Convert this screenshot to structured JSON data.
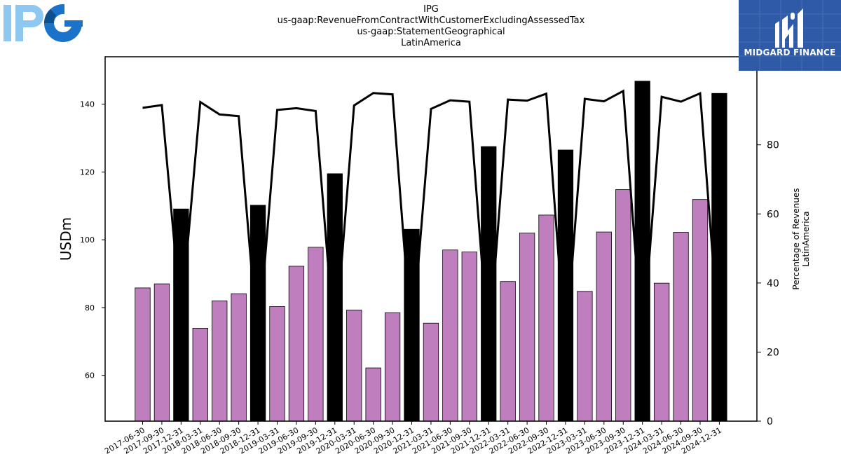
{
  "header": {
    "title_lines": [
      "IPG",
      "us-gaap:RevenueFromContractWithCustomerExcludingAssessedTax",
      "us-gaap:StatementGeographical",
      "LatinAmerica"
    ]
  },
  "logo_left": {
    "text": "IPG",
    "colors": [
      "#8ec8f0",
      "#1a73c9",
      "#0d4f8f"
    ]
  },
  "brand": {
    "text": "MIDGARD FINANCE",
    "bg_color": "#2e5aa8"
  },
  "chart_data": {
    "type": "bar",
    "categories": [
      "2017-06-30",
      "2017-09-30",
      "2017-12-31",
      "2018-03-31",
      "2018-06-30",
      "2018-09-30",
      "2018-12-31",
      "2019-03-31",
      "2019-06-30",
      "2019-09-30",
      "2019-12-31",
      "2020-03-31",
      "2020-06-30",
      "2020-09-30",
      "2020-12-31",
      "2021-03-31",
      "2021-06-30",
      "2021-09-30",
      "2021-12-31",
      "2022-03-31",
      "2022-06-30",
      "2022-09-30",
      "2022-12-31",
      "2023-03-31",
      "2023-06-30",
      "2023-09-30",
      "2023-12-31",
      "2024-03-31",
      "2024-06-30",
      "2024-09-30",
      "2024-12-31"
    ],
    "series": [
      {
        "values": [
          85.8,
          87.0,
          109.1,
          73.9,
          82.0,
          84.1,
          110.2,
          80.3,
          92.2,
          97.8,
          119.5,
          79.3,
          62.2,
          78.5,
          103.1,
          75.4,
          97.0,
          96.4,
          127.5,
          87.7,
          102.0,
          107.3,
          126.5,
          84.8,
          102.3,
          114.8,
          146.8,
          87.2,
          102.2,
          111.9,
          143.2
        ],
        "colors": [
          "#bf7fbf",
          "#bf7fbf",
          "#000000",
          "#bf7fbf",
          "#bf7fbf",
          "#bf7fbf",
          "#000000",
          "#bf7fbf",
          "#bf7fbf",
          "#bf7fbf",
          "#000000",
          "#bf7fbf",
          "#bf7fbf",
          "#bf7fbf",
          "#000000",
          "#bf7fbf",
          "#bf7fbf",
          "#bf7fbf",
          "#000000",
          "#bf7fbf",
          "#bf7fbf",
          "#bf7fbf",
          "#000000",
          "#bf7fbf",
          "#bf7fbf",
          "#bf7fbf",
          "#000000",
          "#bf7fbf",
          "#bf7fbf",
          "#bf7fbf",
          "#000000"
        ]
      },
      {
        "type": "line",
        "axis": "right",
        "color": "#000000",
        "values": [
          90.7,
          91.5,
          29.8,
          92.4,
          88.8,
          88.3,
          21.7,
          90.1,
          90.6,
          89.8,
          21.1,
          91.4,
          95.0,
          94.6,
          22.2,
          90.4,
          92.9,
          92.5,
          20.8,
          93.1,
          92.8,
          94.8,
          20.6,
          93.3,
          92.6,
          95.6,
          21.5,
          93.9,
          92.5,
          94.9,
          22.5
        ]
      }
    ],
    "ylabel": "USDm",
    "ylim": [
      46.5,
      154
    ],
    "yticks": [
      60,
      80,
      100,
      120,
      140
    ],
    "y2label": [
      "Percentage of Revenues",
      "LatinAmerica"
    ],
    "y2lim": [
      0,
      105.5
    ],
    "y2ticks": [
      0,
      20,
      40,
      60,
      80
    ]
  }
}
